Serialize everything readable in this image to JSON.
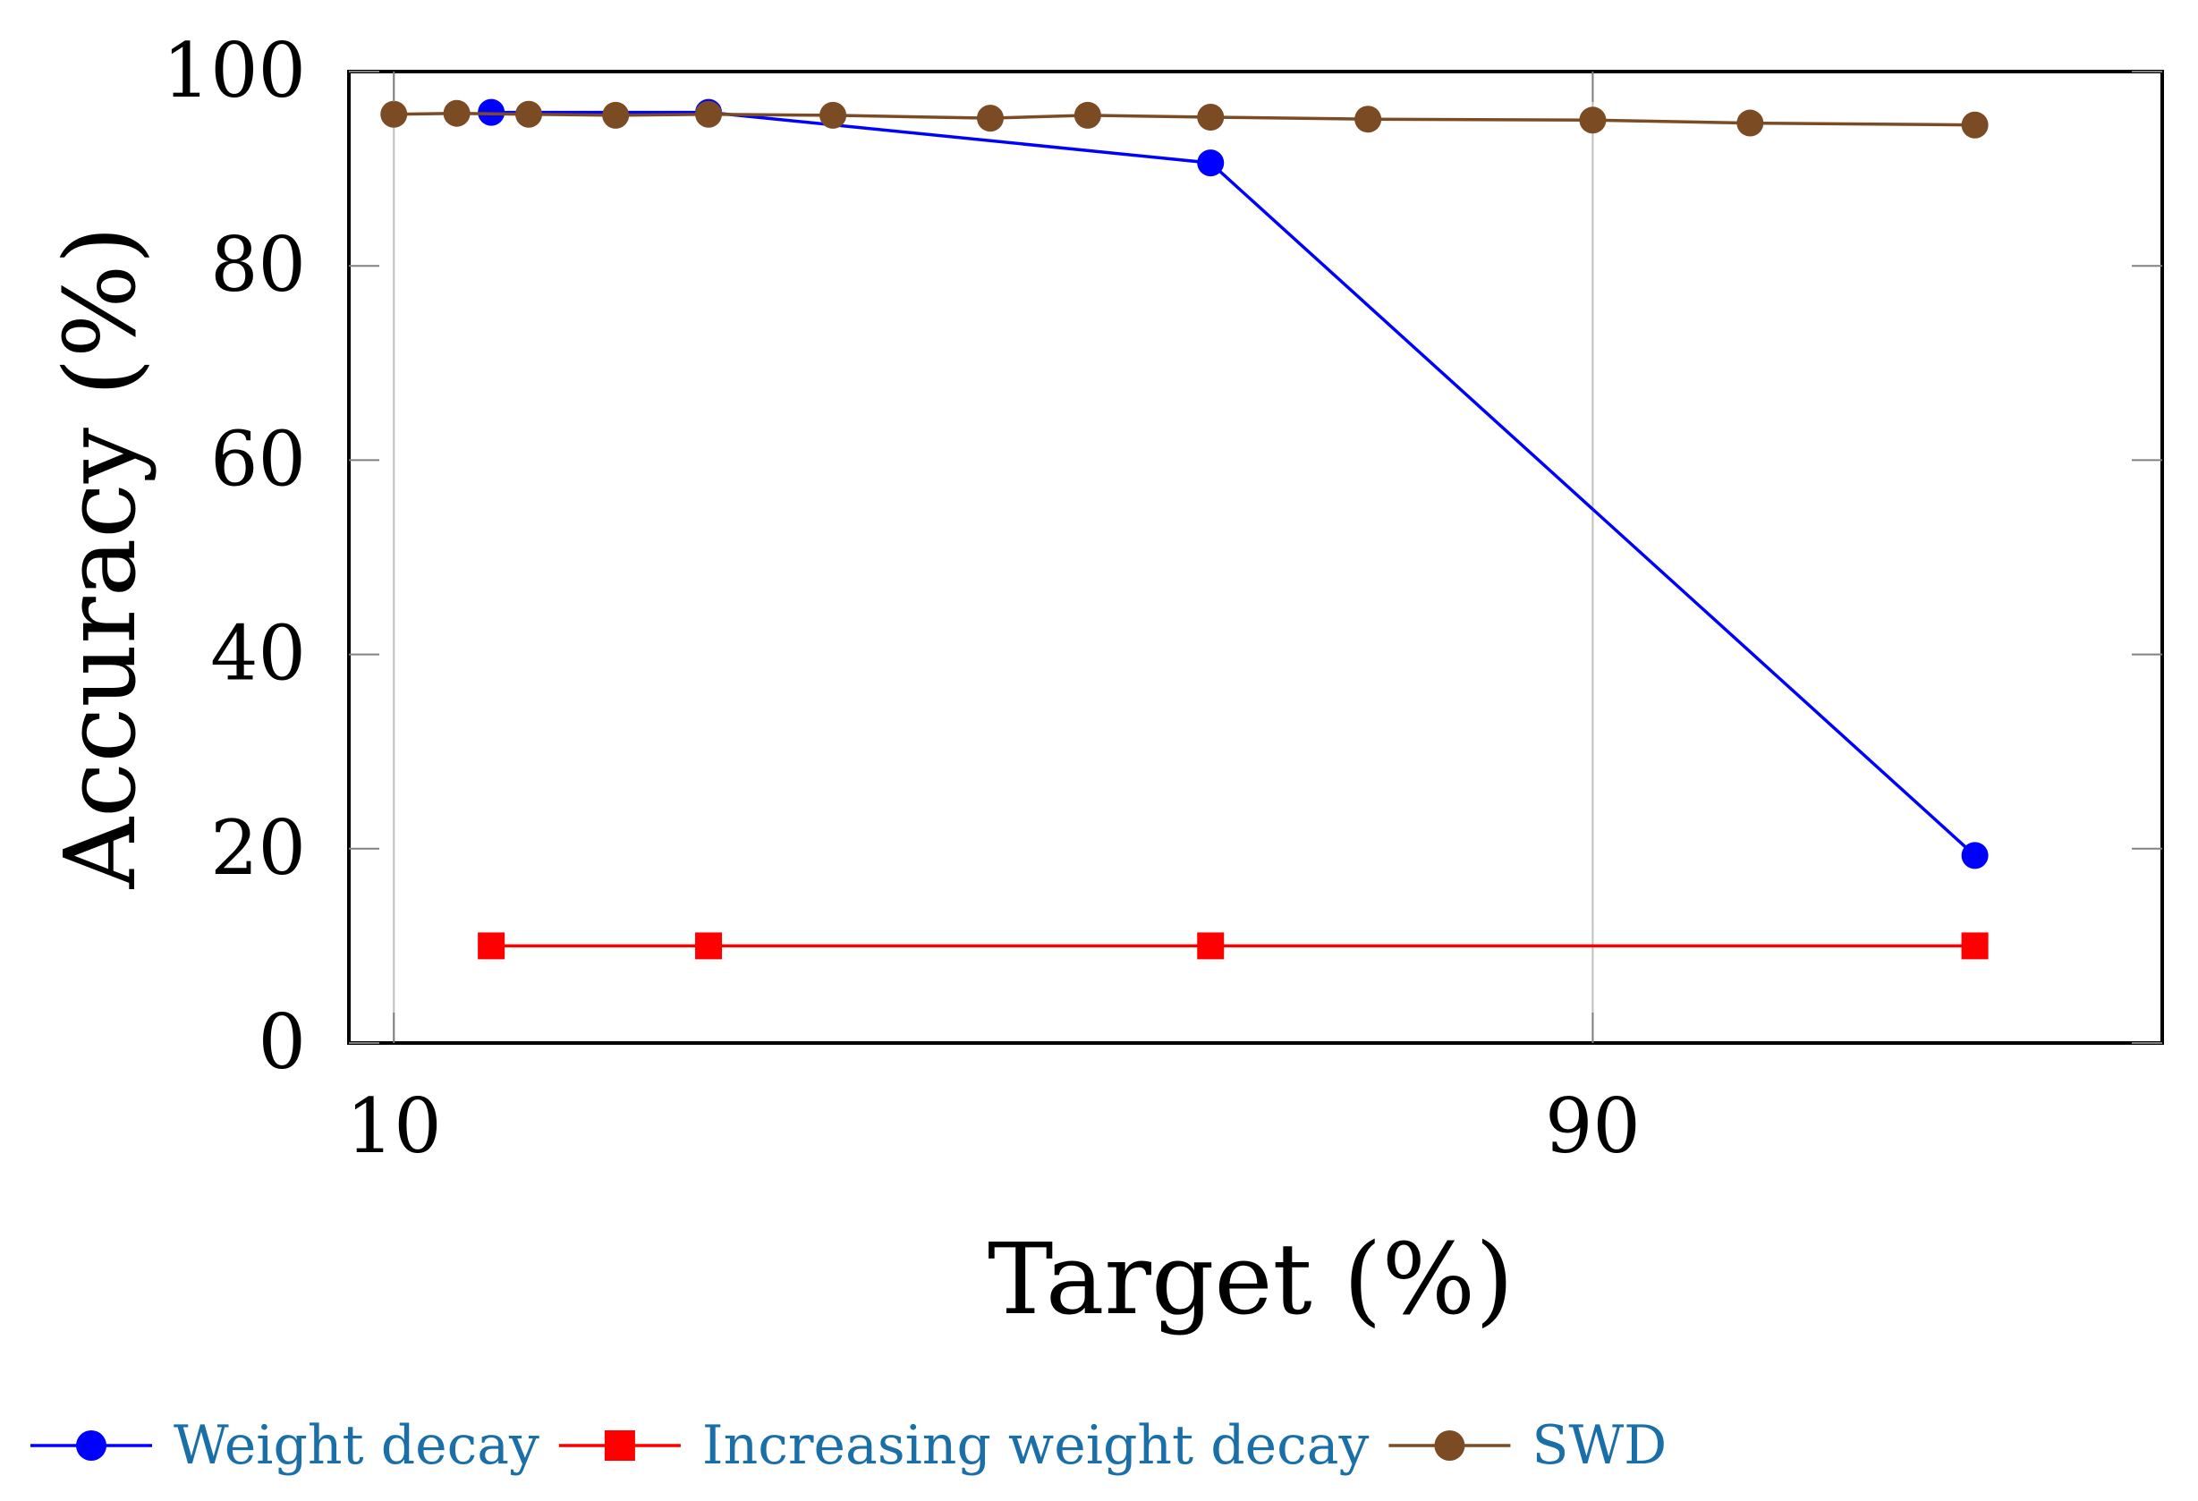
{
  "chart_data": {
    "type": "line",
    "title": "",
    "xlabel": "Target (%)",
    "ylabel": "Accuracy (%)",
    "xlim": [
      -0.3,
      11.8
    ],
    "ylim": [
      0,
      100
    ],
    "xticks": [
      {
        "value": 0,
        "label": "10"
      },
      {
        "value": 8,
        "label": "90"
      }
    ],
    "yticks": [
      {
        "value": 0,
        "label": "0"
      },
      {
        "value": 20,
        "label": "20"
      },
      {
        "value": 40,
        "label": "40"
      },
      {
        "value": 60,
        "label": "60"
      },
      {
        "value": 80,
        "label": "80"
      },
      {
        "value": 100,
        "label": "100"
      }
    ],
    "grid": "x-only",
    "legend_position": "bottom",
    "series": [
      {
        "name": "Weight decay",
        "color": "#0000ff",
        "marker": "circle",
        "x": [
          0.65,
          2.1,
          5.45,
          10.55
        ],
        "y": [
          95.8,
          95.8,
          90.6,
          19.3
        ]
      },
      {
        "name": "Increasing weight decay",
        "color": "#ff0000",
        "marker": "square",
        "x": [
          0.65,
          2.1,
          5.45,
          10.55
        ],
        "y": [
          10,
          10,
          10,
          10
        ]
      },
      {
        "name": "SWD",
        "color": "#7b4b24",
        "marker": "circle",
        "x": [
          0,
          0.42,
          0.9,
          1.48,
          2.1,
          2.93,
          3.98,
          4.63,
          5.45,
          6.5,
          8,
          9.05,
          10.55
        ],
        "y": [
          95.6,
          95.7,
          95.6,
          95.5,
          95.6,
          95.5,
          95.2,
          95.5,
          95.3,
          95.1,
          95.0,
          94.7,
          94.5
        ]
      }
    ]
  }
}
